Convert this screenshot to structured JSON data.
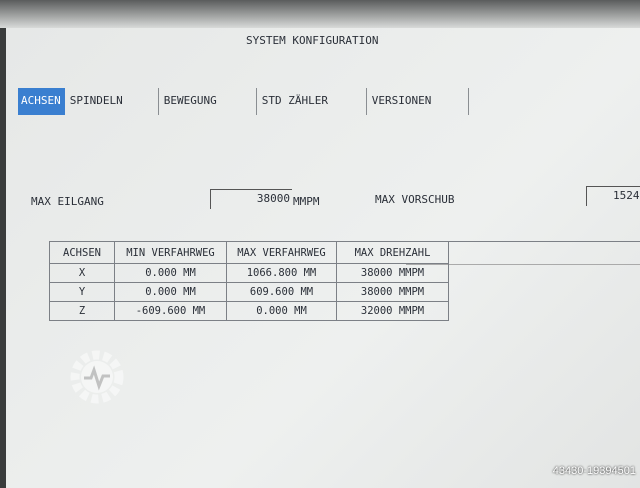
{
  "title": "SYSTEM KONFIGURATION",
  "tabs": [
    {
      "label": "ACHSEN",
      "active": true
    },
    {
      "label": "SPINDELN"
    },
    {
      "label": "BEWEGUNG"
    },
    {
      "label": "STD ZÄHLER"
    },
    {
      "label": "VERSIONEN"
    }
  ],
  "max_eilgang": {
    "label": "MAX EILGANG",
    "value": "38000",
    "unit": "MMPM"
  },
  "max_vorschub": {
    "label": "MAX VORSCHUB",
    "value": "1524"
  },
  "table": {
    "headers": [
      "ACHSEN",
      "MIN VERFAHRWEG",
      "MAX VERFAHRWEG",
      "MAX DREHZAHL"
    ],
    "rows": [
      [
        "X",
        "0.000 MM",
        "1066.800 MM",
        "38000 MMPM"
      ],
      [
        "Y",
        "0.000 MM",
        "609.600 MM",
        "38000 MMPM"
      ],
      [
        "Z",
        "-609.600 MM",
        "0.000 MM",
        "32000 MMPM"
      ]
    ]
  },
  "watermark": "43430-19394501",
  "accent": "#3a7fd0"
}
